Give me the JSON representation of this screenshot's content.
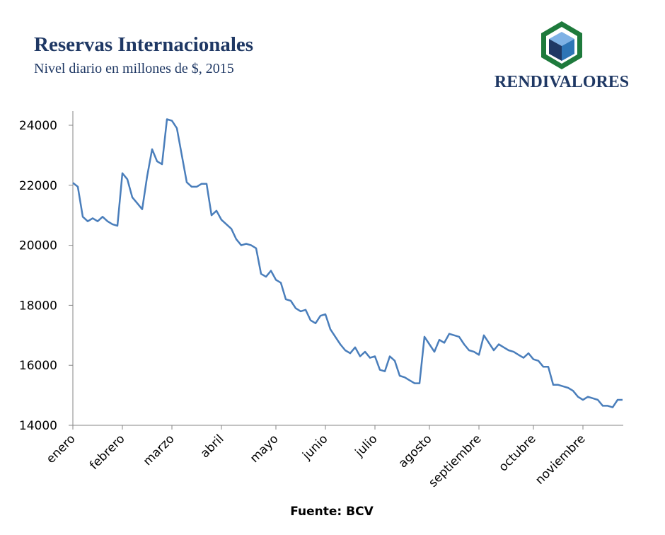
{
  "chart_data": {
    "type": "line",
    "title": "Reservas Internacionales",
    "subtitle": "Nivel diario en millones de $, 2015",
    "brand": "RENDIVALORES",
    "source": "Fuente: BCV",
    "color": "#4a7ebb",
    "ylim": [
      14000,
      24000
    ],
    "yticks": [
      14000,
      16000,
      18000,
      20000,
      22000,
      24000
    ],
    "categories": [
      "enero",
      null,
      null,
      null,
      null,
      null,
      null,
      null,
      null,
      null,
      "febrero",
      null,
      null,
      null,
      null,
      null,
      null,
      null,
      null,
      null,
      "marzo",
      null,
      null,
      null,
      null,
      null,
      null,
      null,
      null,
      null,
      "abril",
      null,
      null,
      null,
      null,
      null,
      null,
      null,
      null,
      null,
      null,
      "mayo",
      null,
      null,
      null,
      null,
      null,
      null,
      null,
      null,
      null,
      "junio",
      null,
      null,
      null,
      null,
      null,
      null,
      null,
      null,
      null,
      "julio",
      null,
      null,
      null,
      null,
      null,
      null,
      null,
      null,
      null,
      null,
      "agosto",
      null,
      null,
      null,
      null,
      null,
      null,
      null,
      null,
      null,
      "septiembre",
      null,
      null,
      null,
      null,
      null,
      null,
      null,
      null,
      null,
      null,
      "octubre",
      null,
      null,
      null,
      null,
      null,
      null,
      null,
      null,
      null,
      "noviembre",
      null,
      null,
      null,
      null,
      null,
      null,
      null,
      null
    ],
    "values": [
      22080,
      21950,
      20950,
      20800,
      20900,
      20800,
      20950,
      20800,
      20700,
      20650,
      22400,
      22200,
      21600,
      21400,
      21200,
      22300,
      23200,
      22800,
      22700,
      24200,
      24150,
      23900,
      23000,
      22100,
      21950,
      21950,
      22050,
      22050,
      21000,
      21150,
      20850,
      20700,
      20550,
      20200,
      20000,
      20050,
      20000,
      19900,
      19050,
      18950,
      19150,
      18850,
      18750,
      18200,
      18150,
      17900,
      17800,
      17850,
      17500,
      17400,
      17650,
      17700,
      17200,
      16950,
      16700,
      16500,
      16400,
      16600,
      16300,
      16450,
      16250,
      16300,
      15850,
      15800,
      16300,
      16150,
      15650,
      15600,
      15500,
      15400,
      15400,
      16950,
      16700,
      16450,
      16850,
      16750,
      17050,
      17000,
      16950,
      16700,
      16500,
      16450,
      16350,
      17000,
      16750,
      16500,
      16700,
      16600,
      16500,
      16450,
      16350,
      16250,
      16400,
      16200,
      16150,
      15950,
      15950,
      15350,
      15350,
      15300,
      15250,
      15150,
      14950,
      14850,
      14950,
      14900,
      14850,
      14650,
      14650,
      14600,
      14850,
      14850
    ]
  }
}
